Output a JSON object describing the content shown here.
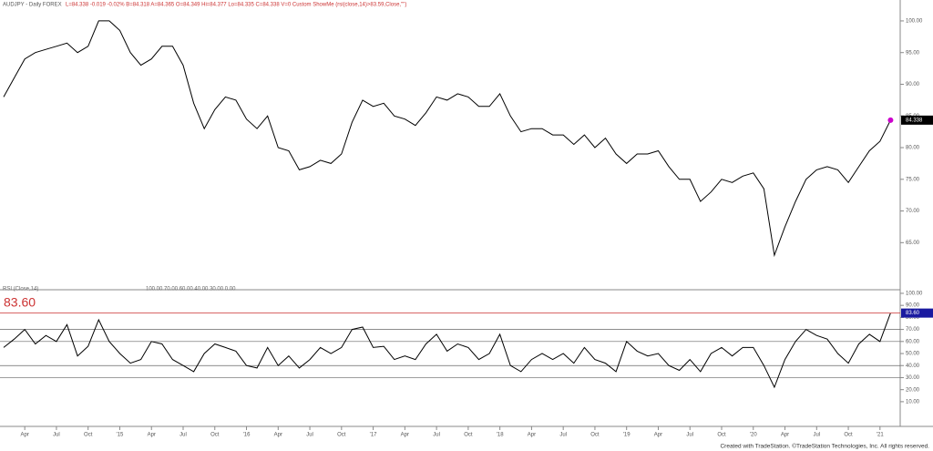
{
  "chart_data": [
    {
      "type": "line",
      "title": "AUDJPY - Daily  FOREX",
      "subtitle": "L=84.338  -0.019  -0.02%  B=84.318  A=84.365  O=84.349  Hi=84.377  Lo=84.335  C=84.338  V=0  Custom ShowMe (rsi(close,14)>83.59,Close,\"\")",
      "series": [
        {
          "name": "AUDJPY",
          "color": "#000000",
          "values": [
            88,
            91,
            94,
            95,
            95.5,
            96,
            96.5,
            95,
            96,
            100,
            100,
            98.5,
            95,
            93,
            94,
            96,
            96,
            93,
            87,
            83,
            86,
            88,
            87.5,
            84.5,
            83,
            85,
            80,
            79.5,
            76.5,
            77,
            78,
            77.5,
            79,
            84,
            87.5,
            86.5,
            87,
            85,
            84.5,
            83.5,
            85.5,
            88,
            87.5,
            88.5,
            88,
            86.5,
            86.5,
            88.5,
            85,
            82.5,
            83,
            83,
            82,
            82,
            80.5,
            82,
            80,
            81.5,
            79,
            77.5,
            79,
            79,
            79.5,
            77,
            75,
            75,
            71.5,
            73,
            75,
            74.5,
            75.5,
            76,
            73.5,
            63,
            67.5,
            71.5,
            75,
            76.5,
            77,
            76.5,
            74.5,
            77,
            79.5,
            81,
            84.338
          ],
          "last_label": "84.338",
          "marker_color": "#cc00cc"
        }
      ],
      "ylim": [
        58,
        103.3
      ],
      "yticks": [
        {
          "value": 65,
          "label": "65.00"
        },
        {
          "value": 70,
          "label": "70.00"
        },
        {
          "value": 75,
          "label": "75.00"
        },
        {
          "value": 80,
          "label": "80.00"
        },
        {
          "value": 85,
          "label": "85.00"
        },
        {
          "value": 90,
          "label": "90.00"
        },
        {
          "value": 95,
          "label": "95.00"
        },
        {
          "value": 100,
          "label": "100.00"
        }
      ]
    },
    {
      "type": "line",
      "title": "RSI (Close,14)",
      "subtitle": "100.00  70.00  60.00  40.00  30.00  0.00",
      "categories": [
        null,
        null,
        "Apr",
        null,
        null,
        "Jul",
        null,
        null,
        "Oct",
        null,
        null,
        "'15",
        null,
        null,
        "Apr",
        null,
        null,
        "Jul",
        null,
        null,
        "Oct",
        null,
        null,
        "'16",
        null,
        null,
        "Apr",
        null,
        null,
        "Jul",
        null,
        null,
        "Oct",
        null,
        null,
        "'17",
        null,
        null,
        "Apr",
        null,
        null,
        "Jul",
        null,
        null,
        "Oct",
        null,
        null,
        "'18",
        null,
        null,
        "Apr",
        null,
        null,
        "Jul",
        null,
        null,
        "Oct",
        null,
        null,
        "'19",
        null,
        null,
        "Apr",
        null,
        null,
        "Jul",
        null,
        null,
        "Oct",
        null,
        null,
        "'20",
        null,
        null,
        "Apr",
        null,
        null,
        "Jul",
        null,
        null,
        "Oct",
        null,
        null,
        "'21",
        null
      ],
      "series": [
        {
          "name": "RSI",
          "color": "#000000",
          "values": [
            55,
            62,
            70,
            58,
            65,
            60,
            74,
            48,
            56,
            78,
            60,
            50,
            42,
            45,
            60,
            58,
            45,
            40,
            35,
            50,
            58,
            55,
            52,
            40,
            38,
            55,
            40,
            48,
            38,
            45,
            55,
            50,
            55,
            70,
            72,
            55,
            56,
            45,
            48,
            45,
            58,
            66,
            52,
            58,
            55,
            45,
            50,
            66,
            40,
            35,
            45,
            50,
            45,
            50,
            42,
            55,
            45,
            42,
            35,
            60,
            52,
            48,
            50,
            40,
            36,
            45,
            35,
            50,
            55,
            48,
            55,
            55,
            40,
            22,
            45,
            60,
            70,
            65,
            62,
            50,
            42,
            58,
            66,
            60,
            83.6
          ],
          "last_label": "83.60",
          "level_color": "#cc3333"
        }
      ],
      "levels": [
        30,
        40,
        60,
        70
      ],
      "ylim": [
        -9,
        104.5
      ],
      "yticks": [
        {
          "value": 10,
          "label": "10.00"
        },
        {
          "value": 20,
          "label": "20.00"
        },
        {
          "value": 30,
          "label": "30.00"
        },
        {
          "value": 40,
          "label": "40.00"
        },
        {
          "value": 50,
          "label": "50.00"
        },
        {
          "value": 60,
          "label": "60.00"
        },
        {
          "value": 70,
          "label": "70.00"
        },
        {
          "value": 80,
          "label": "80.00"
        },
        {
          "value": 90,
          "label": "90.00"
        },
        {
          "value": 100,
          "label": "100.00"
        }
      ]
    }
  ],
  "footer": "Created with TradeStation. ©TradeStation Technologies, Inc. All rights reserved."
}
